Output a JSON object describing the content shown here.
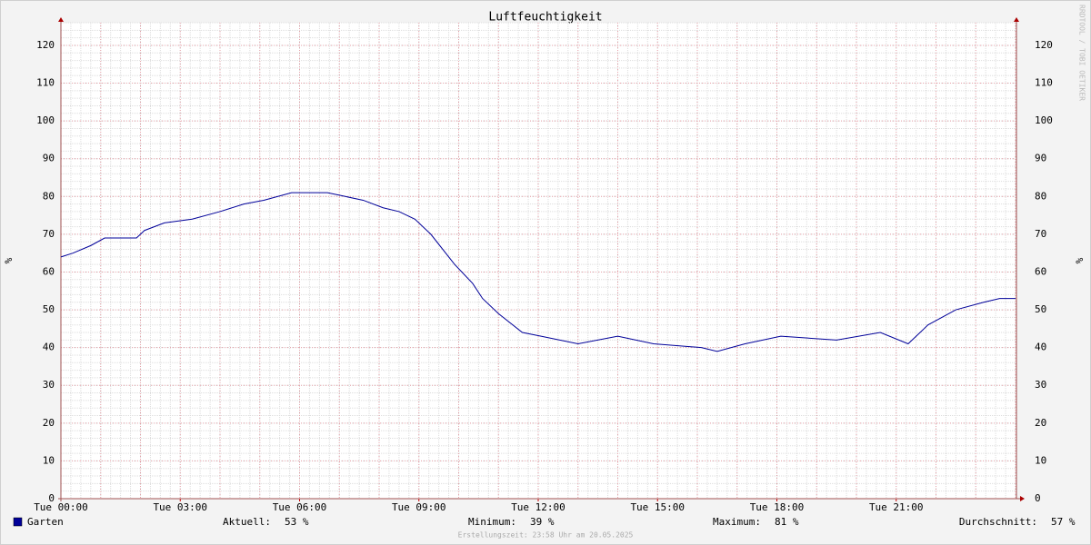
{
  "chart_data": {
    "type": "line",
    "title": "Luftfeuchtigkeit",
    "y_label": "%",
    "watermark": "RRDTOOL / TOBI OETIKER",
    "footer": "Erstellungszeit: 23:58 Uhr am 20.05.2025",
    "x": [
      0,
      0.3,
      0.75,
      1.1,
      1.9,
      2.1,
      2.6,
      3.3,
      4,
      4.6,
      5.1,
      5.8,
      6.7,
      7.15,
      7.6,
      8.1,
      8.5,
      8.9,
      9.3,
      9.9,
      10.35,
      10.6,
      11,
      11.6,
      12.07,
      13,
      14,
      14.9,
      16.1,
      16.5,
      17.2,
      18.1,
      19.5,
      20.6,
      21.3,
      21.8,
      22.5,
      23.2,
      23.6,
      24
    ],
    "series": [
      {
        "name": "Garten",
        "color": "#000099",
        "values": [
          64,
          65,
          67,
          69,
          69,
          71,
          73,
          74,
          76,
          78,
          79,
          81,
          81,
          80,
          79,
          77,
          76,
          74,
          70,
          62,
          57,
          53,
          49,
          44,
          43,
          41,
          43,
          41,
          40,
          39,
          41,
          43,
          42,
          44,
          41,
          46,
          50,
          52,
          53,
          53
        ]
      }
    ],
    "stats": {
      "names": [
        "Aktuell:",
        "Minimum:",
        "Maximum:",
        "Durchschnitt:"
      ],
      "value_labels": [
        "53 %",
        "39 %",
        "81 %",
        "57 %"
      ]
    },
    "xlim": [
      0,
      24
    ],
    "xticks": [
      {
        "value": 0,
        "label": "Tue 00:00"
      },
      {
        "value": 3,
        "label": "Tue 03:00"
      },
      {
        "value": 6,
        "label": "Tue 06:00"
      },
      {
        "value": 9,
        "label": "Tue 09:00"
      },
      {
        "value": 12,
        "label": "Tue 12:00"
      },
      {
        "value": 15,
        "label": "Tue 15:00"
      },
      {
        "value": 18,
        "label": "Tue 18:00"
      },
      {
        "value": 21,
        "label": "Tue 21:00"
      }
    ],
    "ylim": [
      0,
      126
    ],
    "yticks": [
      0,
      10,
      20,
      30,
      40,
      50,
      60,
      70,
      80,
      90,
      100,
      110,
      120
    ],
    "grid": true,
    "x_major_grid_step": 1,
    "x_minor_grid_step": 0.25,
    "y_minor_grid_step": 2
  }
}
